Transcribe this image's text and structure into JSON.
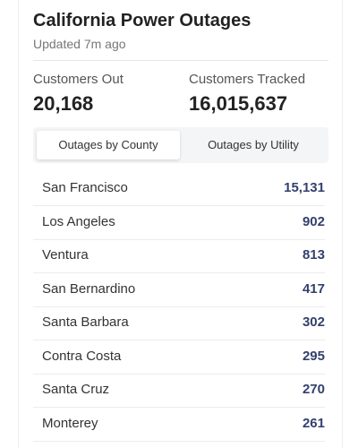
{
  "header": {
    "title": "California Power Outages",
    "updated": "Updated 7m ago"
  },
  "stats": [
    {
      "label": "Customers Out",
      "value": "20,168"
    },
    {
      "label": "Customers Tracked",
      "value": "16,015,637"
    }
  ],
  "tabs": [
    "Outages by County",
    "Outages by Utility"
  ],
  "table": {
    "rows": [
      [
        "San Francisco",
        "15,131"
      ],
      [
        "Los Angeles",
        "902"
      ],
      [
        "Ventura",
        "813"
      ],
      [
        "San Bernardino",
        "417"
      ],
      [
        "Santa Barbara",
        "302"
      ],
      [
        "Contra Costa",
        "295"
      ],
      [
        "Santa Cruz",
        "270"
      ],
      [
        "Monterey",
        "261"
      ]
    ]
  }
}
